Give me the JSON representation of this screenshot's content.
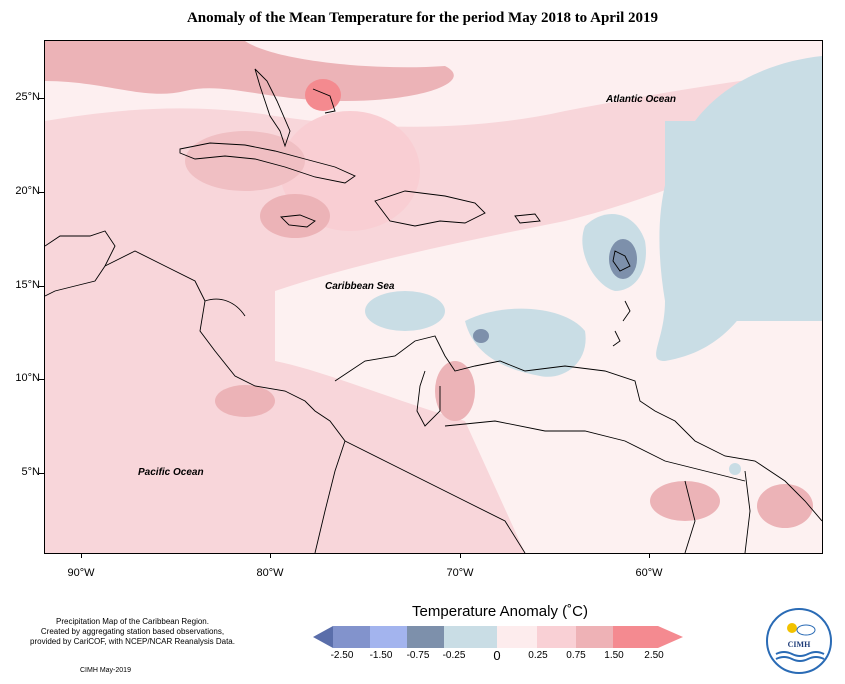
{
  "title": "Anomaly of the Mean Temperature for the period May 2018 to April 2019",
  "lat_labels": [
    "25°N",
    "20°N",
    "15°N",
    "10°N",
    "5°N"
  ],
  "lon_labels": [
    "90°W",
    "80°W",
    "70°W",
    "60°W"
  ],
  "ocean_labels": {
    "atlantic": "Atlantic Ocean",
    "caribbean": "Caribbean Sea",
    "pacific": "Pacific Ocean"
  },
  "credits": {
    "line1": "Precipitation Map of the Caribbean Region.",
    "line2": "Created by aggregating station based observations,",
    "line3": "provided by CariCOF, with NCEP/NCAR Reanalysis Data.",
    "date": "CIMH May-2019"
  },
  "legend": {
    "title": "Temperature Anomaly (˚C)",
    "ticks": [
      "-2.50",
      "-1.50",
      "-0.75",
      "-0.25",
      "0",
      "0.25",
      "0.75",
      "1.50",
      "2.50"
    ],
    "colors": [
      "#5a6eaa",
      "#8293cc",
      "#a3b4ee",
      "#7d90ab",
      "#c9dde5",
      "#fdeced",
      "#f9d0d5",
      "#eeb2b6",
      "#f48a90"
    ]
  },
  "logo": {
    "text": "CIMH"
  },
  "colors": {
    "warm_light": "#fde8ea",
    "warm": "#f8cfd4",
    "warm_mid": "#ecb3b7",
    "warm_strong": "#f48a8f",
    "cool_light": "#c9dde5",
    "cool_mid": "#7d90ab",
    "cool_strong": "#5e7498",
    "neutral": "#fdf3f3"
  }
}
